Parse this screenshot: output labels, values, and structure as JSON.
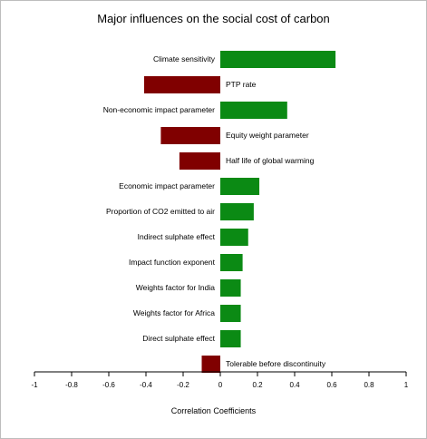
{
  "chart_data": {
    "type": "bar",
    "orientation": "horizontal",
    "title": "Major influences on the social cost of carbon",
    "xlabel": "Correlation Coefficients",
    "ylabel": "",
    "xlim": [
      -1,
      1
    ],
    "xticks": [
      "-1",
      "-0.8",
      "-0.6",
      "-0.4",
      "-0.2",
      "0",
      "0.2",
      "0.4",
      "0.6",
      "0.8",
      "1"
    ],
    "grid": false,
    "legend": "none",
    "colors": {
      "positive": "#0b8a14",
      "negative": "#800000"
    },
    "categories": [
      "Climate sensitivity",
      "PTP rate",
      "Non-economic impact parameter",
      "Equity weight parameter",
      "Half life of global warming",
      "Economic impact parameter",
      "Proportion of CO2 emitted to air",
      "Indirect sulphate effect",
      "Impact function exponent",
      "Weights factor for India",
      "Weights factor for Africa",
      "Direct sulphate effect",
      "Tolerable before discontinuity"
    ],
    "values": [
      0.62,
      -0.41,
      0.36,
      -0.32,
      -0.22,
      0.21,
      0.18,
      0.15,
      0.12,
      0.11,
      0.11,
      0.11,
      -0.1
    ]
  }
}
